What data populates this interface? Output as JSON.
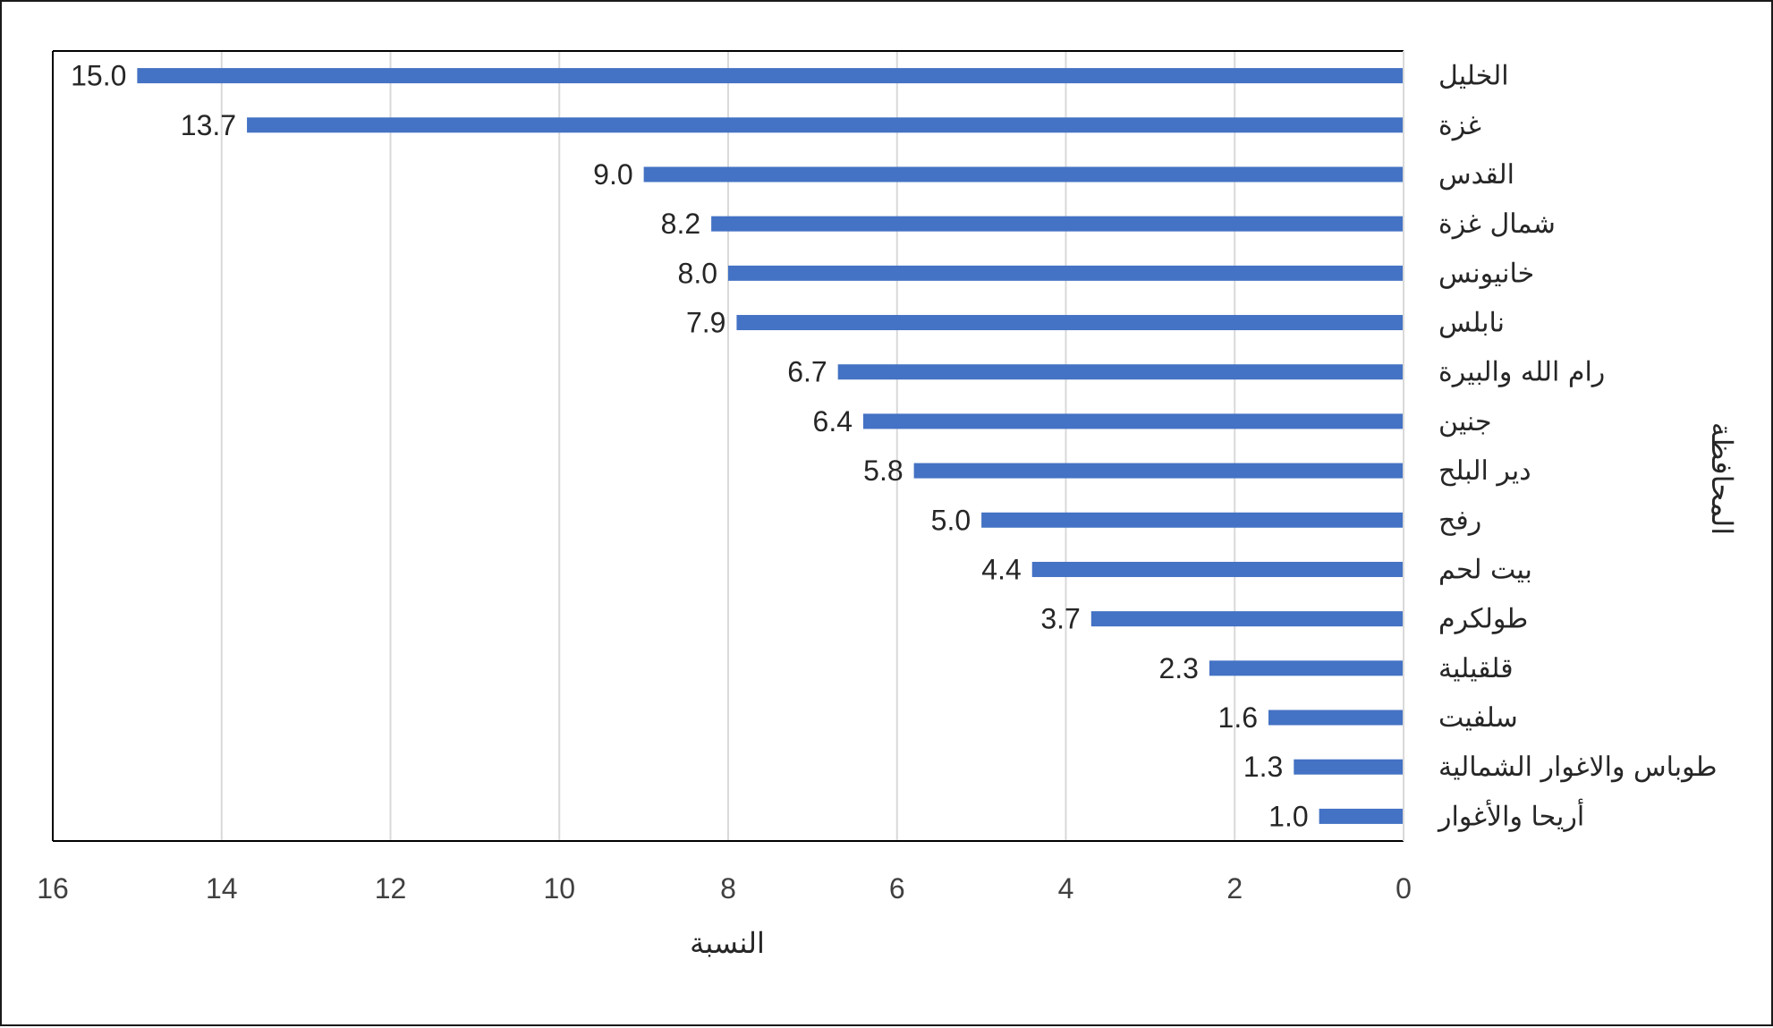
{
  "chart_data": {
    "type": "bar",
    "orientation": "horizontal",
    "xaxis_direction": "right-to-left",
    "categories": [
      "الخليل",
      "غزة",
      "القدس",
      "شمال غزة",
      "خانيونس",
      "نابلس",
      "رام الله والبيرة",
      "جنين",
      "دير البلح",
      "رفح",
      "بيت لحم",
      "طولكرم",
      "قلقيلية",
      "سلفيت",
      "طوباس والاغوار الشمالية",
      "أريحا والأغوار"
    ],
    "values": [
      15.0,
      13.7,
      9.0,
      8.2,
      8.0,
      7.9,
      6.7,
      6.4,
      5.8,
      5.0,
      4.4,
      3.7,
      2.3,
      1.6,
      1.3,
      1.0
    ],
    "data_labels": [
      "15.0",
      "13.7",
      "9.0",
      "8.2",
      "8.0",
      "7.9",
      "6.7",
      "6.4",
      "5.8",
      "5.0",
      "4.4",
      "3.7",
      "2.3",
      "1.6",
      "1.3",
      "1.0"
    ],
    "xticks": [
      "0",
      "2",
      "4",
      "6",
      "8",
      "10",
      "12",
      "14",
      "16"
    ],
    "xlim": [
      0,
      16
    ],
    "xlabel": "النسبة",
    "ylabel": "المحافظة",
    "title": "",
    "bar_color": "#4472C4",
    "grid": true,
    "legend": "none"
  }
}
